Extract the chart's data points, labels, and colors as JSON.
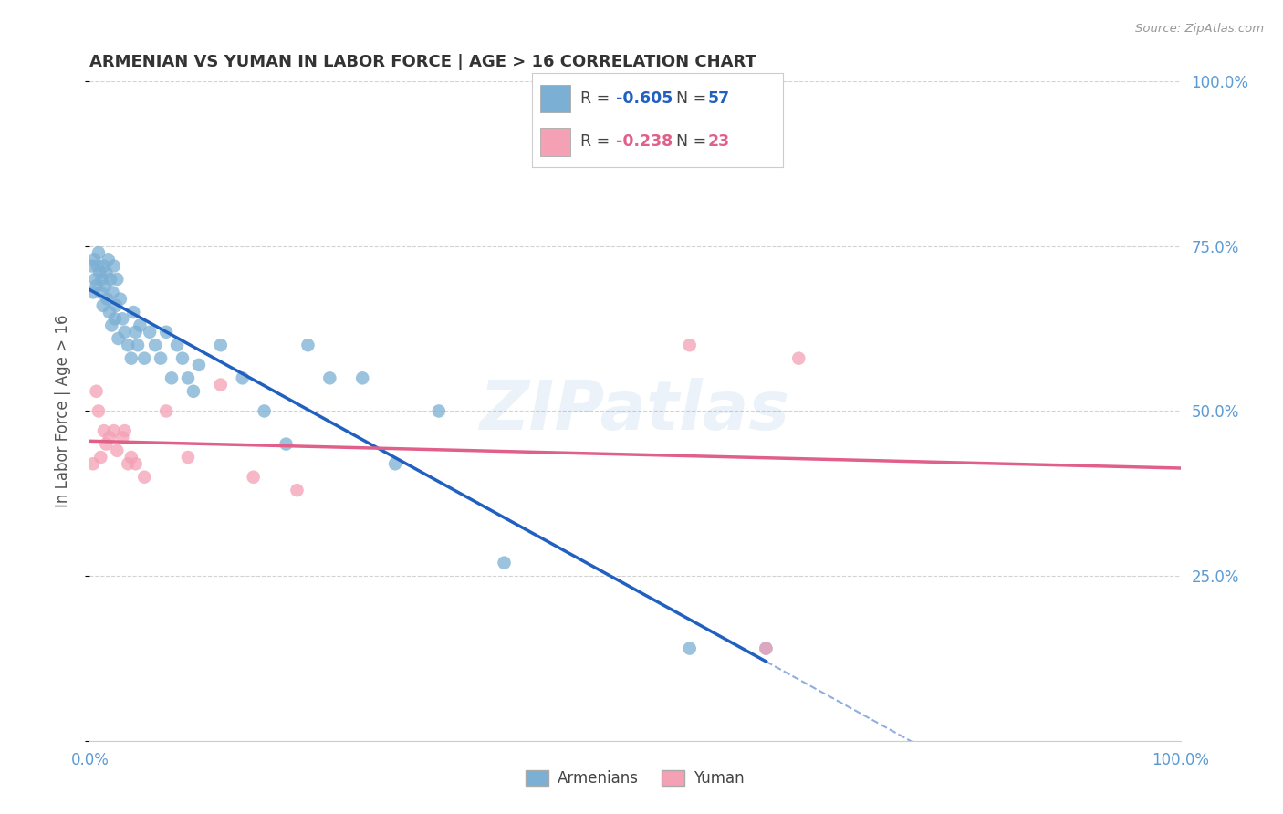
{
  "title": "ARMENIAN VS YUMAN IN LABOR FORCE | AGE > 16 CORRELATION CHART",
  "source": "Source: ZipAtlas.com",
  "ylabel": "In Labor Force | Age > 16",
  "watermark": "ZIPatlas",
  "r_armenian": -0.605,
  "n_armenian": 57,
  "r_yuman": -0.238,
  "n_yuman": 23,
  "armenian_color": "#7bafd4",
  "yuman_color": "#f4a0b5",
  "armenian_line_color": "#2060c0",
  "yuman_line_color": "#e0608a",
  "bg_color": "#ffffff",
  "grid_color": "#c8c8c8",
  "title_color": "#333333",
  "axis_label_color": "#5b9bd5",
  "armenian_x": [
    0.2,
    0.3,
    0.4,
    0.5,
    0.6,
    0.7,
    0.8,
    0.9,
    1.0,
    1.1,
    1.2,
    1.3,
    1.4,
    1.5,
    1.6,
    1.7,
    1.8,
    1.9,
    2.0,
    2.1,
    2.2,
    2.3,
    2.4,
    2.5,
    2.6,
    2.8,
    3.0,
    3.2,
    3.5,
    3.8,
    4.0,
    4.2,
    4.4,
    4.6,
    5.0,
    5.5,
    6.0,
    6.5,
    7.0,
    7.5,
    8.0,
    8.5,
    9.0,
    9.5,
    10.0,
    12.0,
    14.0,
    16.0,
    18.0,
    20.0,
    22.0,
    25.0,
    28.0,
    32.0,
    38.0,
    55.0,
    62.0
  ],
  "armenian_y": [
    72,
    68,
    73,
    70,
    69,
    72,
    74,
    71,
    68,
    70,
    66,
    72,
    69,
    71,
    67,
    73,
    65,
    70,
    63,
    68,
    72,
    64,
    66,
    70,
    61,
    67,
    64,
    62,
    60,
    58,
    65,
    62,
    60,
    63,
    58,
    62,
    60,
    58,
    62,
    55,
    60,
    58,
    55,
    53,
    57,
    60,
    55,
    50,
    45,
    60,
    55,
    55,
    42,
    50,
    27,
    14,
    14
  ],
  "yuman_x": [
    0.3,
    0.6,
    0.8,
    1.0,
    1.3,
    1.5,
    1.8,
    2.2,
    2.5,
    3.0,
    3.2,
    3.5,
    3.8,
    4.2,
    5.0,
    7.0,
    9.0,
    12.0,
    15.0,
    19.0,
    55.0,
    62.0,
    65.0
  ],
  "yuman_y": [
    42,
    53,
    50,
    43,
    47,
    45,
    46,
    47,
    44,
    46,
    47,
    42,
    43,
    42,
    40,
    50,
    43,
    54,
    40,
    38,
    60,
    14,
    58
  ],
  "xlim": [
    0.0,
    100.0
  ],
  "ylim": [
    0.0,
    100.0
  ],
  "yticks": [
    0.0,
    25.0,
    50.0,
    75.0,
    100.0
  ],
  "xticks": [
    0.0,
    25.0,
    50.0,
    75.0,
    100.0
  ]
}
